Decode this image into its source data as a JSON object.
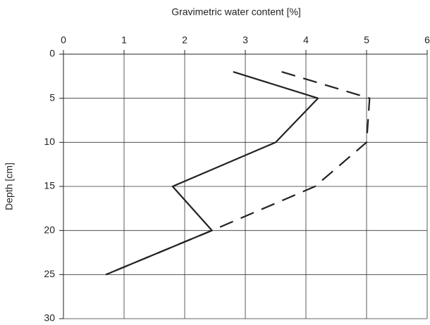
{
  "chart_data": {
    "type": "line",
    "xlabel": "Gravimetric water content [%]",
    "ylabel": "Depth [cm]",
    "xlim": [
      0,
      6
    ],
    "xticks": [
      0,
      1,
      2,
      3,
      4,
      5,
      6
    ],
    "ylim": [
      0,
      30
    ],
    "yticks": [
      0,
      5,
      10,
      15,
      20,
      25,
      30
    ],
    "y_inverted": true,
    "x_axis_position": "top",
    "grid": true,
    "series": [
      {
        "color": "#222222",
        "dash": "solid",
        "x": [
          2.8,
          4.2,
          3.5,
          1.8,
          2.45,
          0.7
        ],
        "values": [
          2,
          5,
          10,
          15,
          20,
          25
        ]
      },
      {
        "color": "#222222",
        "dash": "dashed",
        "x": [
          3.6,
          5.05,
          5.0,
          4.15,
          2.45,
          0.7
        ],
        "values": [
          2,
          5,
          10,
          15,
          20,
          25
        ]
      }
    ]
  }
}
